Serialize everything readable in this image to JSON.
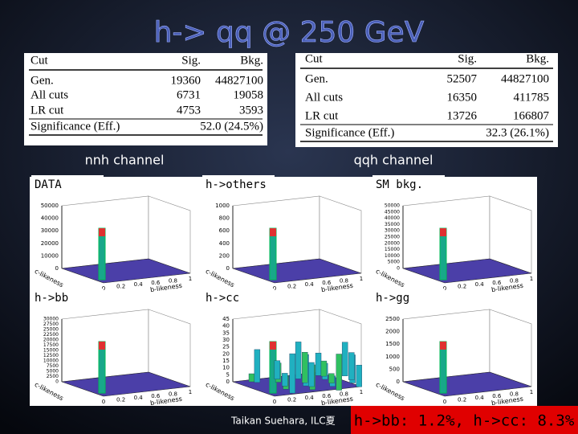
{
  "header": {
    "title": "h-> qq @ 250 GeV"
  },
  "tables": [
    {
      "columns": [
        "Cut",
        "Sig.",
        "Bkg."
      ],
      "rows": [
        [
          "Gen.",
          "19360",
          "44827100"
        ],
        [
          "All cuts",
          "6731",
          "19058"
        ],
        [
          "LR cut",
          "4753",
          "3593"
        ],
        [
          "Significance (Eff.)",
          "52.0 (24.5%)"
        ]
      ],
      "caption": "nnh channel"
    },
    {
      "columns": [
        "Cut",
        "Sig.",
        "Bkg."
      ],
      "rows": [
        [
          "Gen.",
          "52507",
          "44827100"
        ],
        [
          "All cuts",
          "16350",
          "411785"
        ],
        [
          "LR cut",
          "13726",
          "166807"
        ],
        [
          "Significance (Eff.)",
          "32.3 (26.1%)"
        ]
      ],
      "caption": "qqh channel"
    }
  ],
  "plot_axes": {
    "xticks": [
      "0",
      "0.2",
      "0.4",
      "0.6",
      "0.8",
      "1"
    ],
    "xlabel": "b-likeness",
    "ylabel": "c-likeness"
  },
  "panels": [
    {
      "label": "DATA",
      "yticks": [
        "50000",
        "40000",
        "30000",
        "20000",
        "10000",
        "0"
      ]
    },
    {
      "label": "h->others",
      "yticks": [
        "1000",
        "800",
        "600",
        "400",
        "200",
        "0"
      ]
    },
    {
      "label": "SM bkg.",
      "yticks": [
        "50000",
        "45000",
        "40000",
        "35000",
        "30000",
        "25000",
        "20000",
        "15000",
        "10000",
        "5000",
        "0"
      ]
    },
    {
      "label": "h->bb",
      "yticks": [
        "30000",
        "27500",
        "25000",
        "22500",
        "20000",
        "17500",
        "15000",
        "12500",
        "10000",
        "7500",
        "5000",
        "2500",
        "0"
      ]
    },
    {
      "label": "h->cc",
      "yticks": [
        "45",
        "40",
        "35",
        "30",
        "25",
        "20",
        "15",
        "10",
        "5",
        "0"
      ]
    },
    {
      "label": "h->gg",
      "yticks": [
        "2500",
        "2000",
        "1500",
        "1000",
        "500",
        "0"
      ]
    }
  ],
  "footer": {
    "author": "Taikan Suehara, ILC夏",
    "result": "h->bb: 1.2%, h->cc: 8.3%"
  }
}
